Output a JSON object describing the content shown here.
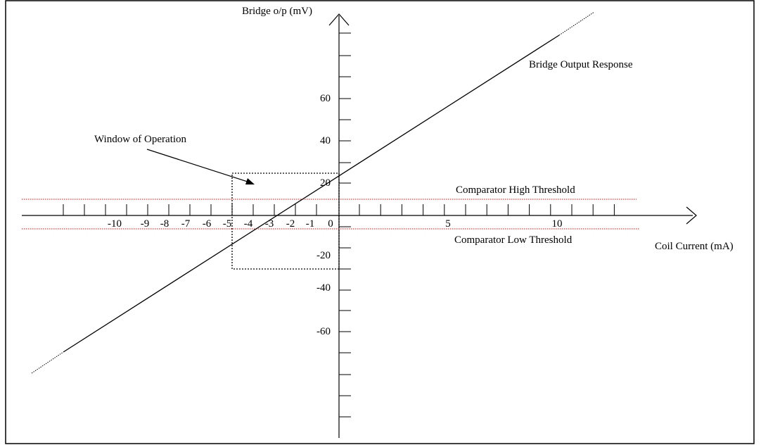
{
  "diagram": {
    "y_axis_label": "Bridge o/p (mV)",
    "x_axis_label": "Coil Current (mA)",
    "response_label": "Bridge Output Response",
    "window_label": "Window of Operation",
    "high_threshold_label": "Comparator High Threshold",
    "low_threshold_label": "Comparator Low Threshold",
    "threshold_color": "#ff0000",
    "line_color": "#000000"
  },
  "chart_data": {
    "type": "line",
    "x_tick_labels": [
      "-10",
      "-9",
      "-8",
      "-7",
      "-6",
      "-5",
      "-4",
      "-3",
      "-2",
      "-1",
      "0",
      "5",
      "10"
    ],
    "y_tick_labels": [
      "60",
      "40",
      "20",
      "-20",
      "-40",
      "-60"
    ],
    "x_tick_values": [
      -10,
      -9,
      -8,
      -7,
      -6,
      -5,
      -4,
      -3,
      -2,
      -1,
      0,
      5,
      10
    ],
    "y_tick_values": [
      60,
      40,
      20,
      -20,
      -40,
      -60
    ],
    "series": [
      {
        "x": [
          -15,
          10
        ],
        "y": [
          -67,
          83
        ]
      }
    ],
    "thresholds": {
      "high": 6,
      "low": -6
    },
    "window": {
      "x": [
        -5,
        0
      ],
      "y": [
        25,
        -25
      ]
    }
  }
}
